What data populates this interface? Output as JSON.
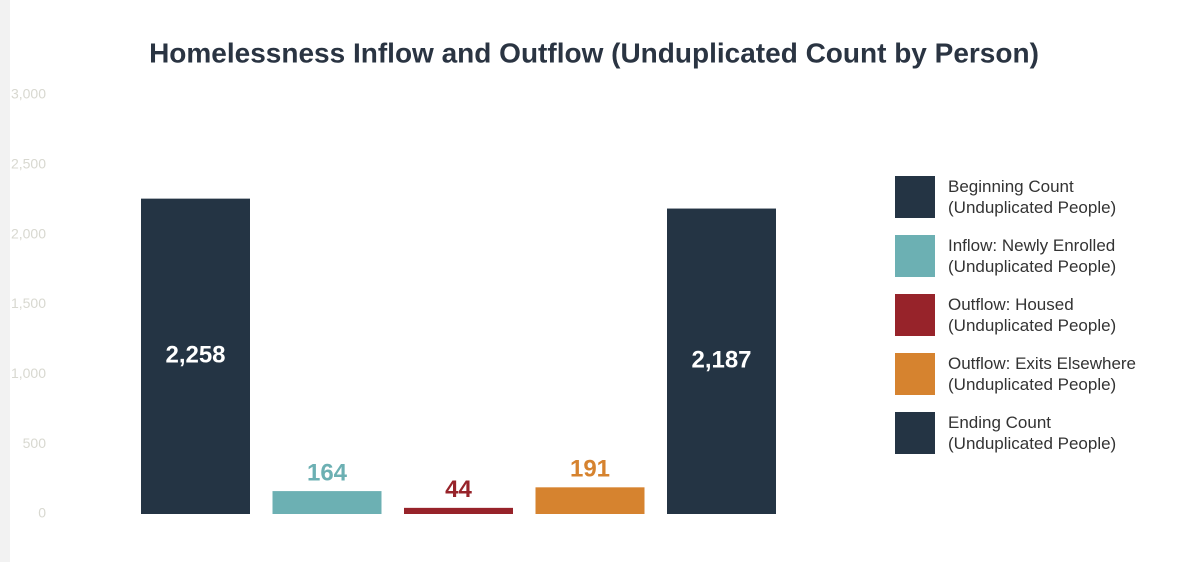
{
  "chart_data": {
    "type": "bar",
    "title": "Homelessness Inflow and Outflow (Unduplicated Count by Person)",
    "categories": [
      "Beginning Count\n(Unduplicated People)",
      "Inflow: Newly Enrolled\n(Unduplicated People)",
      "Outflow: Housed\n(Unduplicated People)",
      "Outflow: Exits Elsewhere\n(Unduplicated People)",
      "Ending Count\n(Unduplicated People)"
    ],
    "values": [
      2258,
      164,
      44,
      191,
      2187
    ],
    "value_labels": [
      "2,258",
      "164",
      "44",
      "191",
      "2,187"
    ],
    "colors": [
      "#243444",
      "#6cb0b3",
      "#97232a",
      "#d6832f",
      "#243444"
    ],
    "ylim": [
      0,
      3000
    ],
    "yticks": [
      0,
      500,
      {
        "value": 1000,
        "label": "1,000"
      },
      {
        "value": 1500,
        "label": "1,500"
      },
      {
        "value": 2000,
        "label": "2,000"
      },
      {
        "value": 2500,
        "label": "2,500"
      },
      {
        "value": 3000,
        "label": "3,000"
      }
    ],
    "legend": "right"
  }
}
